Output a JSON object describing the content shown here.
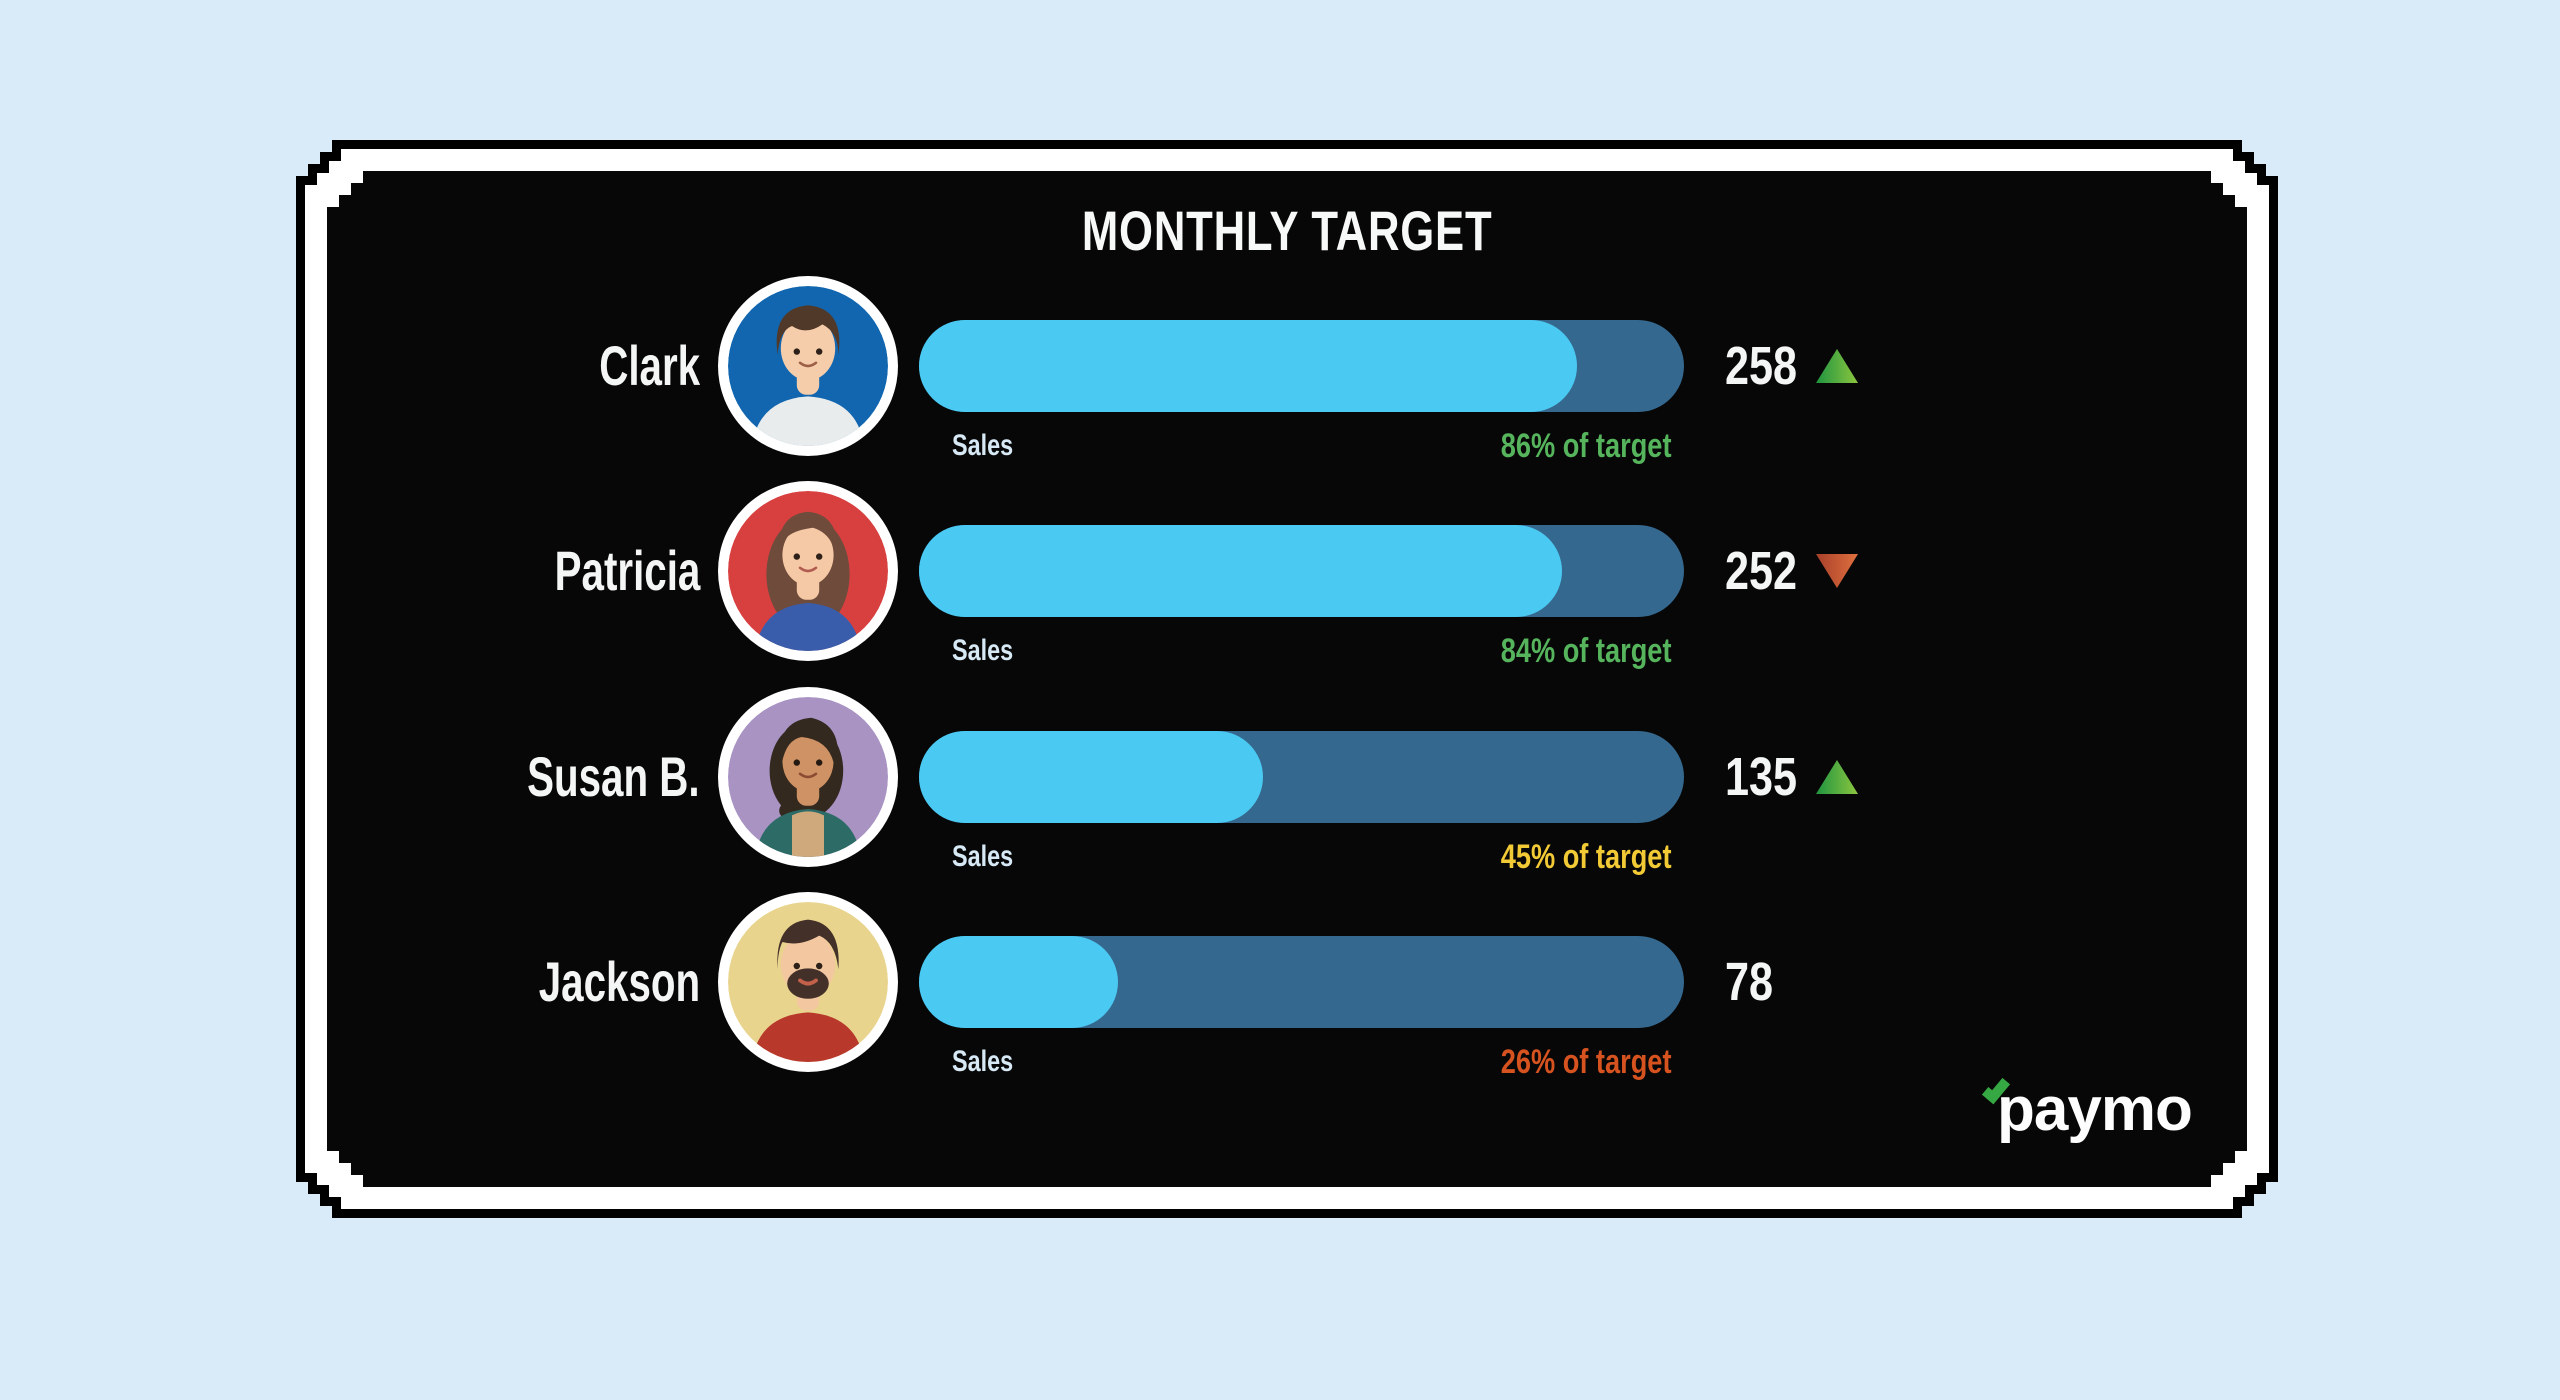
{
  "page": {
    "background": "#d9eaf9",
    "card_background": "#070707",
    "card_border_outer": "#000000",
    "card_border_inner": "#ffffff"
  },
  "header": {
    "title": "MONTHLY TARGET"
  },
  "chart_data": {
    "type": "bar",
    "orientation": "horizontal",
    "title": "MONTHLY TARGET",
    "categories": [
      "Clark",
      "Patricia",
      "Susan B.",
      "Jackson"
    ],
    "series": [
      {
        "name": "Sales value",
        "values": [
          258,
          252,
          135,
          78
        ]
      },
      {
        "name": "Percent of target",
        "unit": "%",
        "values": [
          86,
          84,
          45,
          26
        ]
      }
    ],
    "bar_axis_label": "Sales",
    "percent_range": [
      0,
      100
    ],
    "annotations": [
      "86% of target",
      "84% of target",
      "45% of target",
      "26% of target"
    ],
    "trend_indicators": [
      "up",
      "down",
      "up",
      "none"
    ],
    "grid": false,
    "legend": "none"
  },
  "colors": {
    "bar_fill": "#4ac9f2",
    "bar_track": "#35688e",
    "sales_label": "#d6e9f5",
    "name_text": "#f4f5f5",
    "value_text": "#f4f5f5",
    "trend_up": [
      "#1f9440",
      "#8cc63f"
    ],
    "trend_down": [
      "#a8402a",
      "#e0703f"
    ]
  },
  "rows": [
    {
      "name": "Clark",
      "bar_label": "Sales",
      "percent": 86,
      "percent_label": "86% of target",
      "percent_color": "#55b45c",
      "value": "258",
      "trend": "up",
      "avatar_colors": {
        "bg": "#1166af",
        "skin": "#f6cdab",
        "hair": "#51392a",
        "shirt": "#e9eced",
        "shirt2": "#e9eced"
      }
    },
    {
      "name": "Patricia",
      "bar_label": "Sales",
      "percent": 84,
      "percent_label": "84% of target",
      "percent_color": "#55b45c",
      "value": "252",
      "trend": "down",
      "avatar_colors": {
        "bg": "#d84040",
        "skin": "#f6c9a6",
        "hair": "#6e4b3b",
        "shirt": "#3a5dab",
        "shirt2": "#3a5dab"
      }
    },
    {
      "name": "Susan B.",
      "bar_label": "Sales",
      "percent": 45,
      "percent_label": "45% of target",
      "percent_color": "#f2ca35",
      "value": "135",
      "trend": "up",
      "avatar_colors": {
        "bg": "#a893c3",
        "skin": "#cf9265",
        "hair": "#33291f",
        "shirt": "#2c6b66",
        "shirt2": "#cfa97c"
      }
    },
    {
      "name": "Jackson",
      "bar_label": "Sales",
      "percent": 26,
      "percent_label": "26% of target",
      "percent_color": "#d6531f",
      "value": "78",
      "trend": "none",
      "avatar_colors": {
        "bg": "#e9d48d",
        "skin": "#f3c79f",
        "hair": "#433029",
        "shirt": "#b8392c",
        "shirt2": "#b8392c"
      }
    }
  ],
  "footer": {
    "brand": "paymo",
    "brand_mark_color": "#35a843"
  }
}
